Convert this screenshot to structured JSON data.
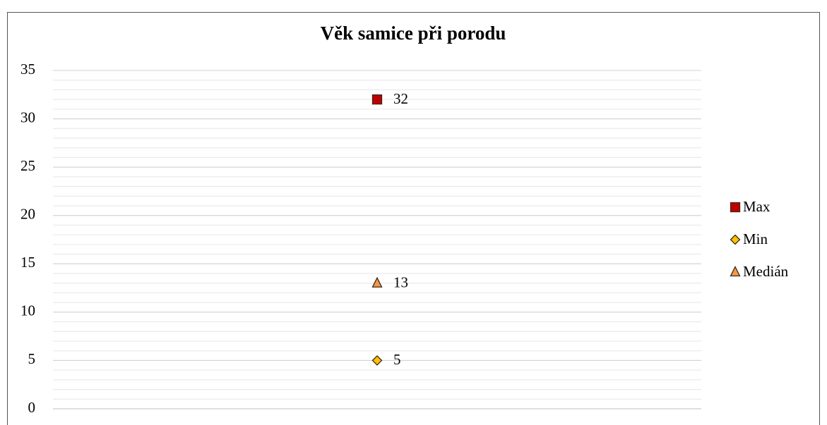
{
  "chart_data": {
    "type": "line",
    "title": "Věk samice při porodu",
    "categories": [
      null
    ],
    "series": [
      {
        "name": "Max",
        "color": "#c00000",
        "marker": "square",
        "values": [
          32
        ]
      },
      {
        "name": "Min",
        "color": "#ffc000",
        "marker": "diamond",
        "values": [
          5
        ]
      },
      {
        "name": "Medián",
        "color": "#f79646",
        "marker": "triangle",
        "values": [
          13
        ]
      }
    ],
    "ylim": [
      0,
      35
    ],
    "yticks": [
      0,
      5,
      10,
      15,
      20,
      25,
      30,
      35
    ],
    "grid": true,
    "minor_grid_step": 1,
    "data_labels": true,
    "legend": "right"
  }
}
